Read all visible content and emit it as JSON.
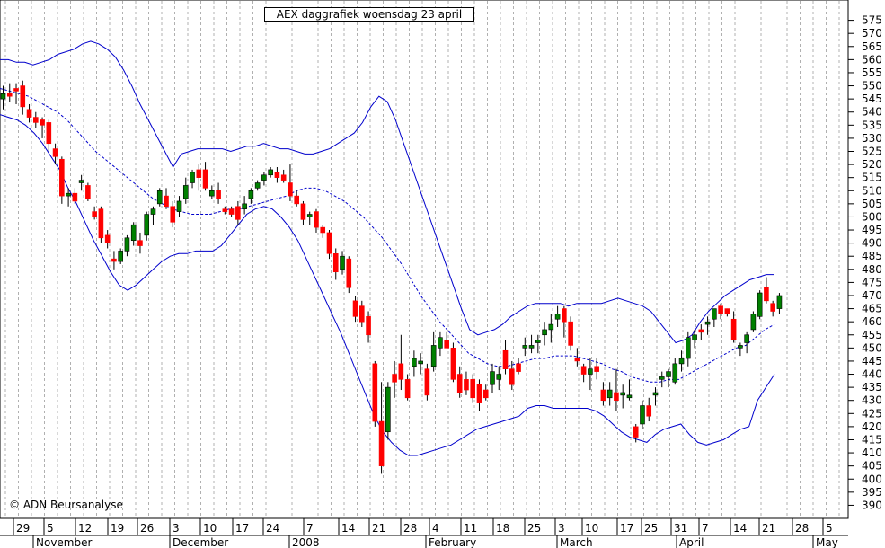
{
  "chart_data": {
    "type": "candlestick",
    "title": "AEX daggrafiek woensdag 23 april",
    "copyright": "© ADN Beursanalyse",
    "ylim": [
      385,
      580
    ],
    "y_ticks": [
      390,
      395,
      400,
      405,
      410,
      415,
      420,
      425,
      430,
      435,
      440,
      445,
      450,
      455,
      460,
      465,
      470,
      475,
      480,
      485,
      490,
      495,
      500,
      505,
      510,
      515,
      520,
      525,
      530,
      535,
      540,
      545,
      550,
      555,
      560,
      565,
      570,
      575
    ],
    "grid": "vertical dashed",
    "colors": {
      "up": "#008000",
      "down": "#ff0000",
      "bands": "#0000cc",
      "background": "#ffffff"
    },
    "day_labels": [
      "29",
      "5",
      "12",
      "19",
      "26",
      "3",
      "10",
      "17",
      "24",
      "7",
      "14",
      "21",
      "28",
      "4",
      "11",
      "18",
      "25",
      "3",
      "10",
      "17",
      "25",
      "31",
      "7",
      "14",
      "21",
      "28",
      "5"
    ],
    "month_labels": [
      "November",
      "December",
      "2008",
      "February",
      "March",
      "April",
      "May"
    ],
    "candles": [
      {
        "o": 545,
        "h": 550,
        "l": 541,
        "c": 547
      },
      {
        "o": 547,
        "h": 551,
        "l": 544,
        "c": 546
      },
      {
        "o": 549,
        "h": 551,
        "l": 543,
        "c": 548
      },
      {
        "o": 550,
        "h": 552,
        "l": 539,
        "c": 542
      },
      {
        "o": 541,
        "h": 543,
        "l": 536,
        "c": 538
      },
      {
        "o": 538,
        "h": 540,
        "l": 534,
        "c": 536
      },
      {
        "o": 537,
        "h": 538,
        "l": 530,
        "c": 535
      },
      {
        "o": 536,
        "h": 537,
        "l": 525,
        "c": 528
      },
      {
        "o": 526,
        "h": 528,
        "l": 520,
        "c": 523
      },
      {
        "o": 522,
        "h": 523,
        "l": 505,
        "c": 508
      },
      {
        "o": 508,
        "h": 511,
        "l": 504,
        "c": 509
      },
      {
        "o": 509,
        "h": 511,
        "l": 505,
        "c": 506
      },
      {
        "o": 513,
        "h": 516,
        "l": 510,
        "c": 514
      },
      {
        "o": 512,
        "h": 513,
        "l": 506,
        "c": 507
      },
      {
        "o": 502,
        "h": 504,
        "l": 499,
        "c": 500
      },
      {
        "o": 503,
        "h": 504,
        "l": 490,
        "c": 492
      },
      {
        "o": 493,
        "h": 495,
        "l": 488,
        "c": 490
      },
      {
        "o": 484,
        "h": 487,
        "l": 480,
        "c": 483
      },
      {
        "o": 483,
        "h": 488,
        "l": 482,
        "c": 487
      },
      {
        "o": 487,
        "h": 493,
        "l": 485,
        "c": 492
      },
      {
        "o": 491,
        "h": 498,
        "l": 489,
        "c": 497
      },
      {
        "o": 491,
        "h": 494,
        "l": 486,
        "c": 489
      },
      {
        "o": 493,
        "h": 502,
        "l": 491,
        "c": 501
      },
      {
        "o": 501,
        "h": 504,
        "l": 497,
        "c": 503
      },
      {
        "o": 505,
        "h": 511,
        "l": 504,
        "c": 510
      },
      {
        "o": 508,
        "h": 511,
        "l": 503,
        "c": 504
      },
      {
        "o": 504,
        "h": 506,
        "l": 496,
        "c": 498
      },
      {
        "o": 502,
        "h": 508,
        "l": 500,
        "c": 506
      },
      {
        "o": 507,
        "h": 515,
        "l": 505,
        "c": 512
      },
      {
        "o": 513,
        "h": 518,
        "l": 511,
        "c": 517
      },
      {
        "o": 518,
        "h": 520,
        "l": 510,
        "c": 515
      },
      {
        "o": 518,
        "h": 521,
        "l": 510,
        "c": 511
      },
      {
        "o": 508,
        "h": 512,
        "l": 507,
        "c": 510
      },
      {
        "o": 510,
        "h": 513,
        "l": 505,
        "c": 507
      },
      {
        "o": 503,
        "h": 504,
        "l": 501,
        "c": 502
      },
      {
        "o": 503,
        "h": 504,
        "l": 500,
        "c": 501
      },
      {
        "o": 504,
        "h": 506,
        "l": 497,
        "c": 499
      },
      {
        "o": 503,
        "h": 508,
        "l": 501,
        "c": 505
      },
      {
        "o": 507,
        "h": 511,
        "l": 505,
        "c": 510
      },
      {
        "o": 511,
        "h": 514,
        "l": 510,
        "c": 513
      },
      {
        "o": 514,
        "h": 517,
        "l": 512,
        "c": 516
      },
      {
        "o": 516,
        "h": 519,
        "l": 515,
        "c": 518
      },
      {
        "o": 517,
        "h": 519,
        "l": 513,
        "c": 515
      },
      {
        "o": 516,
        "h": 518,
        "l": 513,
        "c": 514
      },
      {
        "o": 513,
        "h": 520,
        "l": 506,
        "c": 508
      },
      {
        "o": 508,
        "h": 510,
        "l": 504,
        "c": 505
      },
      {
        "o": 505,
        "h": 506,
        "l": 497,
        "c": 499
      },
      {
        "o": 500,
        "h": 502,
        "l": 497,
        "c": 501
      },
      {
        "o": 502,
        "h": 503,
        "l": 494,
        "c": 496
      },
      {
        "o": 496,
        "h": 497,
        "l": 492,
        "c": 494
      },
      {
        "o": 494,
        "h": 495,
        "l": 484,
        "c": 486
      },
      {
        "o": 486,
        "h": 488,
        "l": 476,
        "c": 479
      },
      {
        "o": 480,
        "h": 487,
        "l": 478,
        "c": 485
      },
      {
        "o": 484,
        "h": 485,
        "l": 471,
        "c": 473
      },
      {
        "o": 468,
        "h": 470,
        "l": 460,
        "c": 462
      },
      {
        "o": 466,
        "h": 468,
        "l": 458,
        "c": 460
      },
      {
        "o": 462,
        "h": 464,
        "l": 452,
        "c": 455
      },
      {
        "o": 444,
        "h": 445,
        "l": 420,
        "c": 422
      },
      {
        "o": 422,
        "h": 437,
        "l": 402,
        "c": 405
      },
      {
        "o": 418,
        "h": 437,
        "l": 415,
        "c": 435
      },
      {
        "o": 440,
        "h": 445,
        "l": 431,
        "c": 437
      },
      {
        "o": 444,
        "h": 455,
        "l": 434,
        "c": 438
      },
      {
        "o": 438,
        "h": 440,
        "l": 430,
        "c": 431
      },
      {
        "o": 443,
        "h": 449,
        "l": 439,
        "c": 446
      },
      {
        "o": 444,
        "h": 448,
        "l": 440,
        "c": 445
      },
      {
        "o": 442,
        "h": 444,
        "l": 430,
        "c": 432
      },
      {
        "o": 443,
        "h": 456,
        "l": 441,
        "c": 451
      },
      {
        "o": 450,
        "h": 456,
        "l": 447,
        "c": 454
      },
      {
        "o": 453,
        "h": 456,
        "l": 451,
        "c": 450
      },
      {
        "o": 450,
        "h": 452,
        "l": 437,
        "c": 438
      },
      {
        "o": 440,
        "h": 443,
        "l": 431,
        "c": 433
      },
      {
        "o": 438,
        "h": 441,
        "l": 432,
        "c": 434
      },
      {
        "o": 438,
        "h": 440,
        "l": 429,
        "c": 431
      },
      {
        "o": 436,
        "h": 438,
        "l": 426,
        "c": 429
      },
      {
        "o": 434,
        "h": 436,
        "l": 430,
        "c": 431
      },
      {
        "o": 436,
        "h": 444,
        "l": 433,
        "c": 441
      },
      {
        "o": 438,
        "h": 443,
        "l": 434,
        "c": 440
      },
      {
        "o": 449,
        "h": 453,
        "l": 440,
        "c": 442
      },
      {
        "o": 442,
        "h": 445,
        "l": 434,
        "c": 436
      },
      {
        "o": 444,
        "h": 446,
        "l": 440,
        "c": 441
      },
      {
        "o": 450,
        "h": 454,
        "l": 447,
        "c": 451
      },
      {
        "o": 450,
        "h": 455,
        "l": 448,
        "c": 451
      },
      {
        "o": 452,
        "h": 455,
        "l": 448,
        "c": 453
      },
      {
        "o": 455,
        "h": 460,
        "l": 451,
        "c": 457
      },
      {
        "o": 457,
        "h": 463,
        "l": 452,
        "c": 459
      },
      {
        "o": 461,
        "h": 466,
        "l": 458,
        "c": 463
      },
      {
        "o": 465,
        "h": 466,
        "l": 454,
        "c": 460
      },
      {
        "o": 460,
        "h": 462,
        "l": 449,
        "c": 451
      },
      {
        "o": 446,
        "h": 450,
        "l": 443,
        "c": 445
      },
      {
        "o": 443,
        "h": 444,
        "l": 437,
        "c": 440
      },
      {
        "o": 440,
        "h": 446,
        "l": 434,
        "c": 442
      },
      {
        "o": 443,
        "h": 446,
        "l": 438,
        "c": 441
      },
      {
        "o": 434,
        "h": 437,
        "l": 428,
        "c": 430
      },
      {
        "o": 431,
        "h": 437,
        "l": 428,
        "c": 434
      },
      {
        "o": 433,
        "h": 442,
        "l": 426,
        "c": 430
      },
      {
        "o": 432,
        "h": 436,
        "l": 427,
        "c": 433
      },
      {
        "o": 431,
        "h": 438,
        "l": 430,
        "c": 432
      },
      {
        "o": 420,
        "h": 421,
        "l": 414,
        "c": 416
      },
      {
        "o": 421,
        "h": 430,
        "l": 419,
        "c": 428
      },
      {
        "o": 428,
        "h": 431,
        "l": 422,
        "c": 424
      },
      {
        "o": 432,
        "h": 435,
        "l": 428,
        "c": 433
      },
      {
        "o": 438,
        "h": 441,
        "l": 435,
        "c": 439
      },
      {
        "o": 439,
        "h": 442,
        "l": 435,
        "c": 441
      },
      {
        "o": 437,
        "h": 446,
        "l": 436,
        "c": 444
      },
      {
        "o": 444,
        "h": 449,
        "l": 441,
        "c": 446
      },
      {
        "o": 446,
        "h": 456,
        "l": 443,
        "c": 454
      },
      {
        "o": 453,
        "h": 457,
        "l": 450,
        "c": 455
      },
      {
        "o": 457,
        "h": 459,
        "l": 453,
        "c": 456
      },
      {
        "o": 459,
        "h": 462,
        "l": 455,
        "c": 460
      },
      {
        "o": 461,
        "h": 464,
        "l": 458,
        "c": 465
      },
      {
        "o": 466,
        "h": 467,
        "l": 461,
        "c": 463
      },
      {
        "o": 465,
        "h": 465,
        "l": 462,
        "c": 463
      },
      {
        "o": 461,
        "h": 464,
        "l": 452,
        "c": 453
      },
      {
        "o": 450,
        "h": 452,
        "l": 447,
        "c": 451
      },
      {
        "o": 452,
        "h": 456,
        "l": 448,
        "c": 455
      },
      {
        "o": 457,
        "h": 464,
        "l": 456,
        "c": 463
      },
      {
        "o": 462,
        "h": 472,
        "l": 461,
        "c": 471
      },
      {
        "o": 473,
        "h": 477,
        "l": 467,
        "c": 468
      },
      {
        "o": 467,
        "h": 468,
        "l": 462,
        "c": 464
      },
      {
        "o": 465,
        "h": 471,
        "l": 463,
        "c": 470
      }
    ],
    "upper_band": [
      560,
      560,
      559,
      559,
      558,
      559,
      560,
      562,
      563,
      564,
      566,
      567,
      566,
      564,
      561,
      556,
      550,
      543,
      537,
      531,
      525,
      519,
      524,
      525,
      526,
      526,
      526,
      526,
      525,
      526,
      527,
      527,
      528,
      527,
      526,
      526,
      525,
      524,
      524,
      525,
      526,
      528,
      530,
      532,
      536,
      542,
      546,
      544,
      537,
      528,
      519,
      510,
      501,
      492,
      483,
      474,
      465,
      457,
      455,
      456,
      457,
      459,
      462,
      464,
      466,
      467,
      467,
      467,
      467,
      466,
      467,
      467,
      467,
      467,
      468,
      469,
      468,
      467,
      466,
      464,
      460,
      456,
      452,
      453,
      455,
      460,
      464,
      467,
      470,
      472,
      474,
      476,
      477,
      478,
      478
    ],
    "middle_band": [
      549,
      548,
      547,
      546,
      544,
      542,
      540,
      537,
      533,
      529,
      525,
      522,
      519,
      516,
      513,
      510,
      507,
      505,
      503,
      502,
      501,
      501,
      501,
      502,
      503,
      503,
      504,
      505,
      506,
      507,
      508,
      510,
      511,
      511,
      510,
      508,
      506,
      503,
      500,
      496,
      492,
      487,
      482,
      476,
      470,
      465,
      460,
      456,
      452,
      448,
      446,
      444,
      443,
      443,
      444,
      445,
      446,
      446,
      447,
      447,
      447,
      446,
      445,
      444,
      442,
      441,
      439,
      438,
      437,
      437,
      438,
      438,
      440,
      442,
      444,
      446,
      448,
      450,
      451,
      454,
      457,
      459
    ],
    "lower_band": [
      539,
      538,
      537,
      535,
      532,
      528,
      523,
      518,
      511,
      505,
      498,
      491,
      485,
      479,
      474,
      472,
      474,
      477,
      480,
      483,
      485,
      486,
      486,
      487,
      487,
      487,
      489,
      493,
      497,
      501,
      503,
      504,
      503,
      500,
      496,
      491,
      484,
      477,
      470,
      463,
      456,
      448,
      440,
      432,
      424,
      418,
      414,
      411,
      409,
      409,
      410,
      411,
      412,
      413,
      415,
      417,
      419,
      420,
      421,
      422,
      423,
      424,
      427,
      428,
      428,
      427,
      427,
      427,
      427,
      427,
      426,
      424,
      421,
      418,
      416,
      415,
      414,
      417,
      419,
      420,
      421,
      417,
      414,
      413,
      414,
      415,
      417,
      419,
      420,
      430,
      435,
      440
    ]
  }
}
